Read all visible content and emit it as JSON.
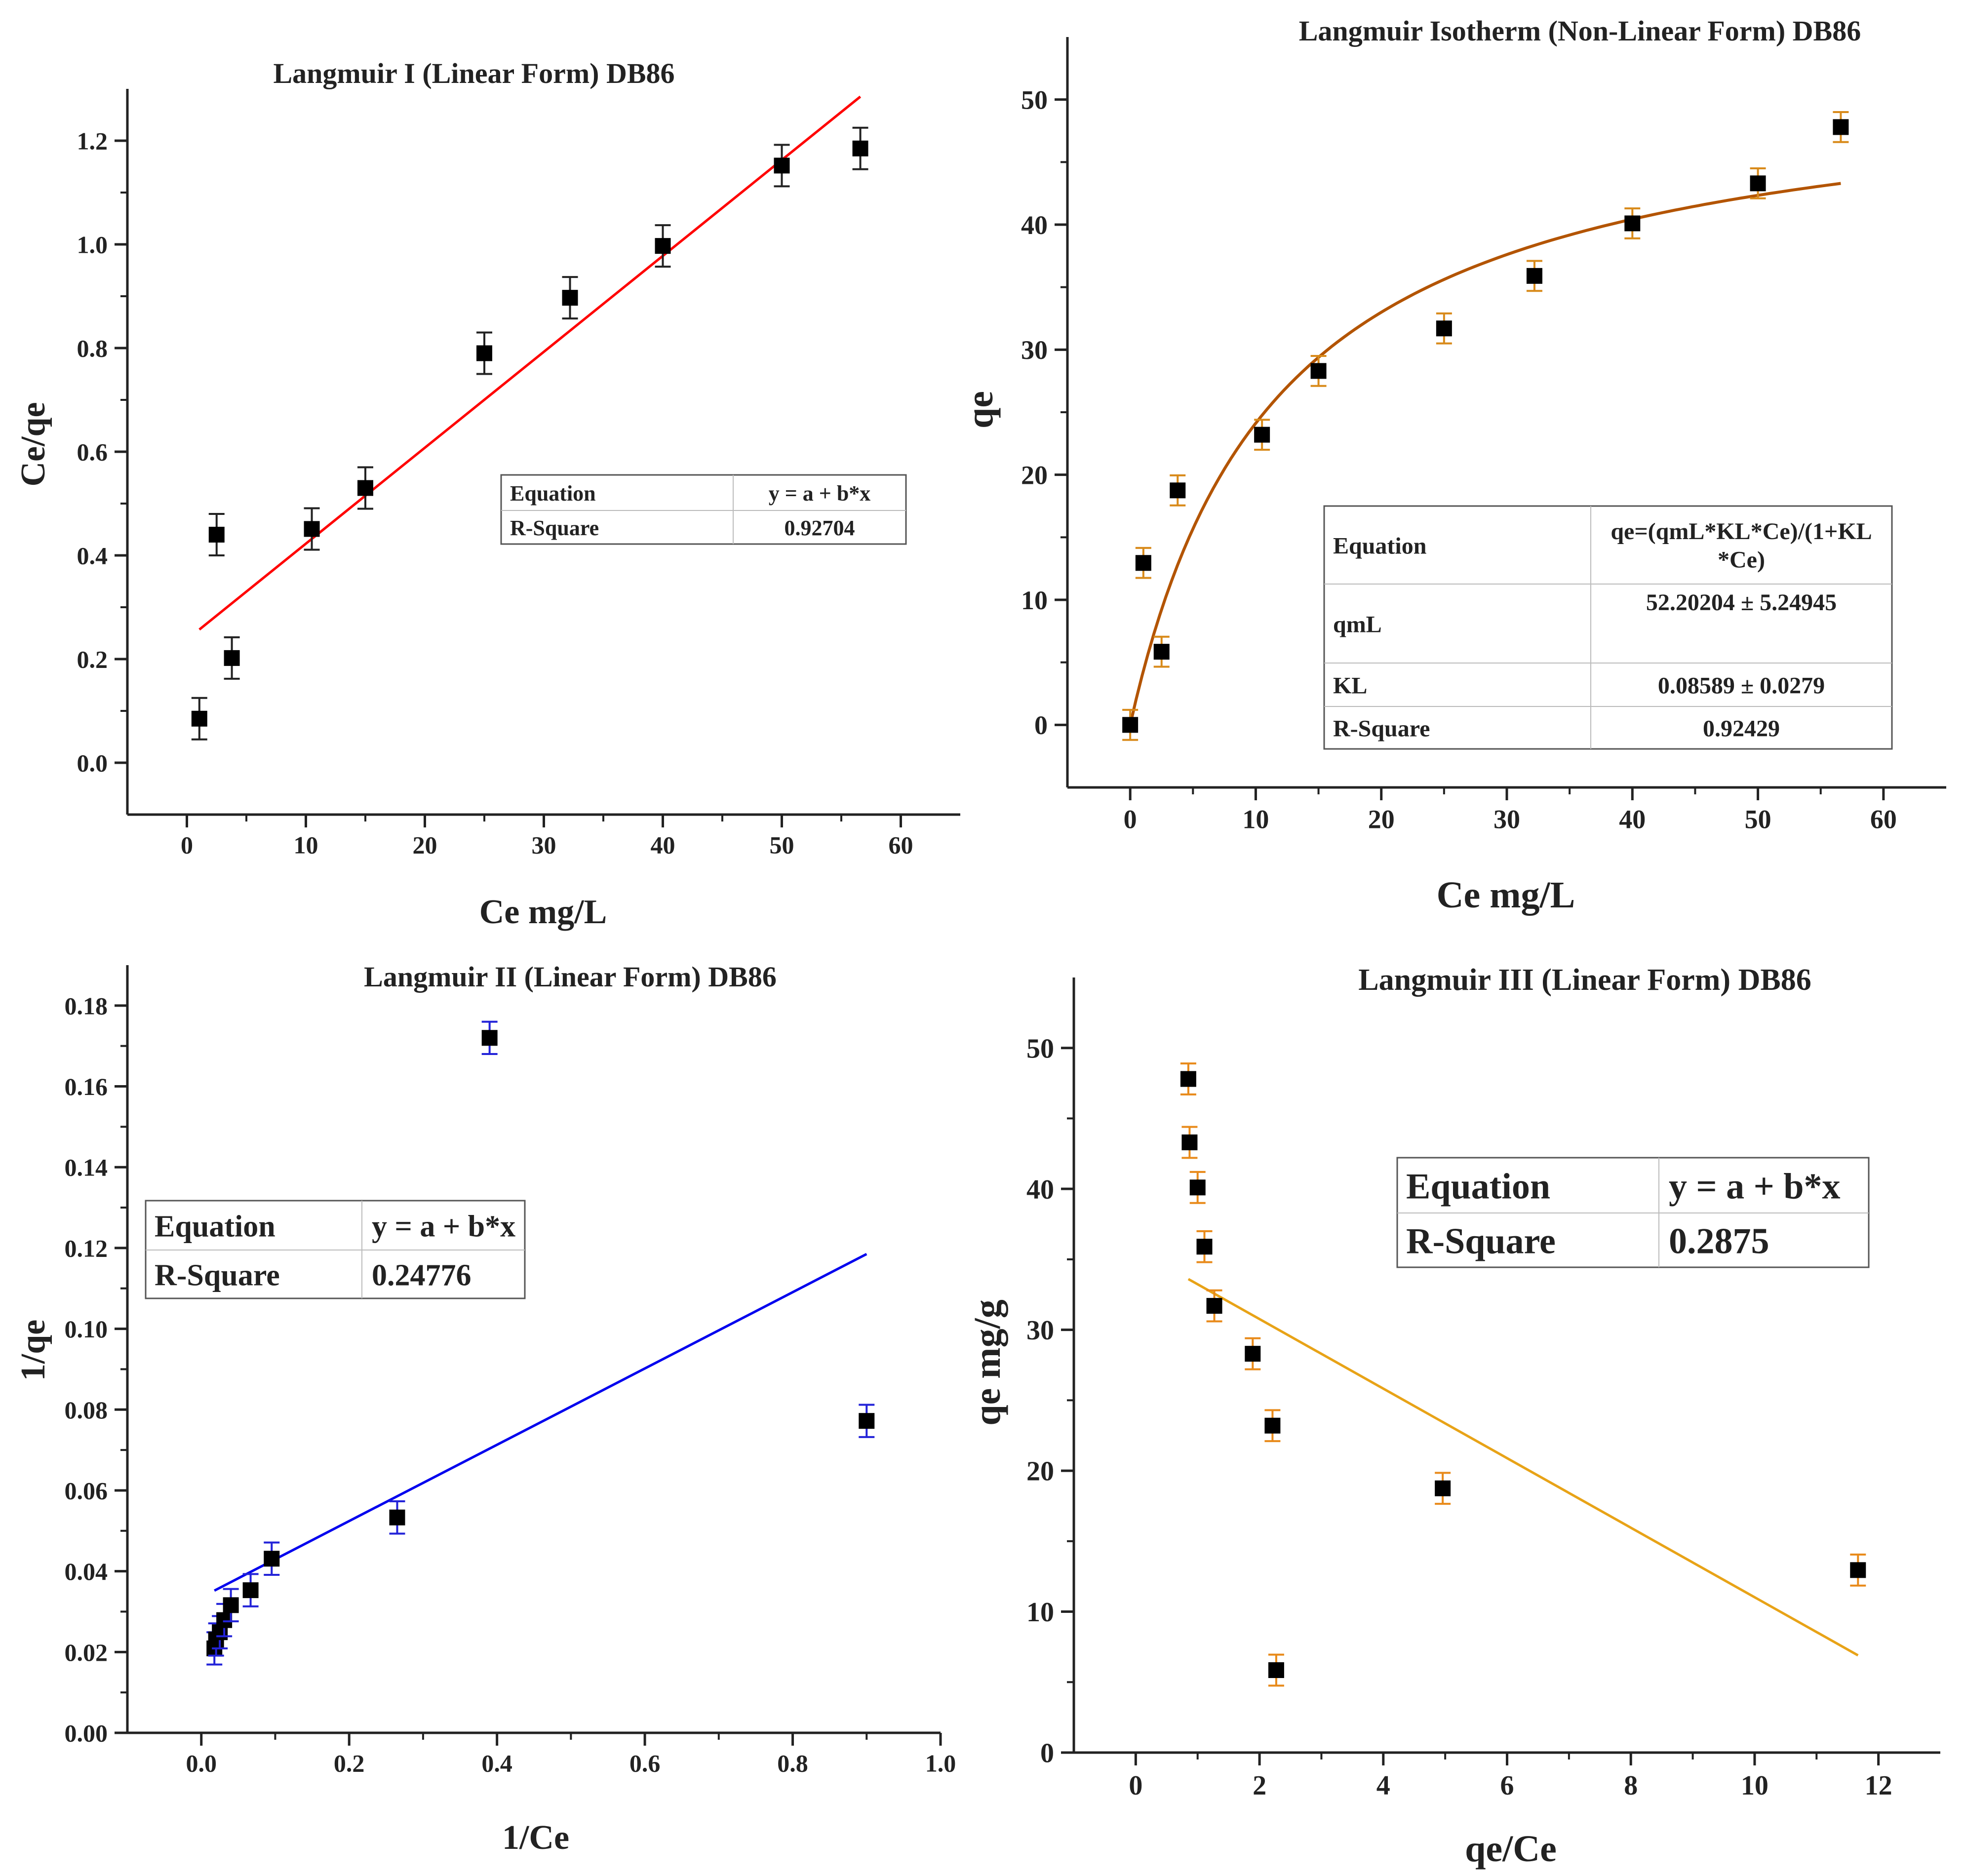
{
  "colors": {
    "axis": "#222222",
    "marker": "#000000",
    "fit_1": "#ff0000",
    "fit_2": "#b35400",
    "fit_3": "#0000ee",
    "fit_4": "#e8a317",
    "err_1": "#222222",
    "err_2": "#d88a1a",
    "err_3": "#2323d8",
    "err_4": "#e88a1a"
  },
  "chart_data": [
    {
      "type": "scatter",
      "title": "Langmuir I (Linear Form) DB86",
      "xlabel": "Ce mg/L",
      "ylabel": "Ce/qe",
      "xlim": [
        -5,
        65
      ],
      "ylim": [
        -0.1,
        1.3
      ],
      "xticks": [
        0,
        10,
        20,
        30,
        40,
        50,
        60
      ],
      "yticks": [
        0.0,
        0.2,
        0.4,
        0.6,
        0.8,
        1.0,
        1.2
      ],
      "xtick_labels": [
        "0",
        "10",
        "20",
        "30",
        "40",
        "50",
        "60"
      ],
      "ytick_labels": [
        "0.0",
        "0.2",
        "0.4",
        "0.6",
        "0.8",
        "1.0",
        "1.2"
      ],
      "points": [
        {
          "x": 1.05,
          "y": 0.085,
          "err": 0.04
        },
        {
          "x": 2.5,
          "y": 0.44,
          "err": 0.04
        },
        {
          "x": 3.78,
          "y": 0.202,
          "err": 0.04
        },
        {
          "x": 10.5,
          "y": 0.451,
          "err": 0.04
        },
        {
          "x": 15.0,
          "y": 0.53,
          "err": 0.04
        },
        {
          "x": 25.0,
          "y": 0.79,
          "err": 0.04
        },
        {
          "x": 32.2,
          "y": 0.897,
          "err": 0.04
        },
        {
          "x": 40.0,
          "y": 0.997,
          "err": 0.04
        },
        {
          "x": 50.0,
          "y": 1.152,
          "err": 0.04
        },
        {
          "x": 56.6,
          "y": 1.185,
          "err": 0.04
        }
      ],
      "fit": {
        "kind": "linear",
        "x_range": [
          1.05,
          56.6
        ],
        "y_start": 0.257,
        "y_end": 1.285
      },
      "legend": {
        "position": "middle-right",
        "rows": [
          {
            "label": "Equation",
            "value": "y = a + b*x"
          },
          {
            "label": "R-Square",
            "value": "0.92704"
          }
        ]
      }
    },
    {
      "type": "scatter",
      "title": "Langmuir Isotherm (Non-Linear Form) DB86",
      "xlabel": "Ce mg/L",
      "ylabel": "qe",
      "xlim": [
        -5,
        65
      ],
      "ylim": [
        -5,
        55
      ],
      "xticks": [
        0,
        10,
        20,
        30,
        40,
        50,
        60
      ],
      "yticks": [
        0,
        10,
        20,
        30,
        40,
        50
      ],
      "xtick_labels": [
        "0",
        "10",
        "20",
        "30",
        "40",
        "50",
        "60"
      ],
      "ytick_labels": [
        "0",
        "10",
        "20",
        "30",
        "40",
        "50"
      ],
      "points": [
        {
          "x": 0.0,
          "y": 0.0,
          "err": 1.2
        },
        {
          "x": 1.05,
          "y": 12.95,
          "err": 1.2
        },
        {
          "x": 2.5,
          "y": 5.85,
          "err": 1.2
        },
        {
          "x": 3.78,
          "y": 18.75,
          "err": 1.2
        },
        {
          "x": 10.5,
          "y": 23.2,
          "err": 1.2
        },
        {
          "x": 15.0,
          "y": 28.3,
          "err": 1.2
        },
        {
          "x": 25.0,
          "y": 31.7,
          "err": 1.2
        },
        {
          "x": 32.2,
          "y": 35.9,
          "err": 1.2
        },
        {
          "x": 40.0,
          "y": 40.1,
          "err": 1.2
        },
        {
          "x": 50.0,
          "y": 43.3,
          "err": 1.2
        },
        {
          "x": 56.6,
          "y": 47.8,
          "err": 1.2
        }
      ],
      "fit": {
        "kind": "langmuir",
        "qm": 52.20204,
        "KL": 0.08589,
        "x_range": [
          0,
          56.6
        ]
      },
      "legend": {
        "position": "lower-right",
        "rows": [
          {
            "label": "Equation",
            "value": "qe=(qmL*KL*Ce)/(1+KL",
            "value2": "*Ce)"
          },
          {
            "label": "qmL",
            "value": "52.20204 ± 5.24945"
          },
          {
            "label": "KL",
            "value": "0.08589 ± 0.0279"
          },
          {
            "label": "R-Square",
            "value": "0.92429"
          }
        ]
      }
    },
    {
      "type": "scatter",
      "title": "Langmuir II (Linear Form) DB86",
      "xlabel": "1/Ce",
      "ylabel": "1/qe",
      "xlim": [
        -0.1,
        1.0
      ],
      "ylim": [
        0.0,
        0.19
      ],
      "xticks": [
        0.0,
        0.2,
        0.4,
        0.6,
        0.8,
        1.0
      ],
      "yticks": [
        0.0,
        0.02,
        0.04,
        0.06,
        0.08,
        0.1,
        0.12,
        0.14,
        0.16,
        0.18
      ],
      "xtick_labels": [
        "0.0",
        "0.2",
        "0.4",
        "0.6",
        "0.8",
        "1.0"
      ],
      "ytick_labels": [
        "0.00",
        "0.02",
        "0.04",
        "0.06",
        "0.08",
        "0.10",
        "0.12",
        "0.14",
        "0.16",
        "0.18"
      ],
      "points": [
        {
          "x": 0.0177,
          "y": 0.0209,
          "err": 0.004
        },
        {
          "x": 0.02,
          "y": 0.0231,
          "err": 0.004
        },
        {
          "x": 0.025,
          "y": 0.0249,
          "err": 0.004
        },
        {
          "x": 0.031,
          "y": 0.0279,
          "err": 0.004
        },
        {
          "x": 0.04,
          "y": 0.0316,
          "err": 0.004
        },
        {
          "x": 0.0667,
          "y": 0.0353,
          "err": 0.004
        },
        {
          "x": 0.0952,
          "y": 0.0431,
          "err": 0.004
        },
        {
          "x": 0.265,
          "y": 0.0533,
          "err": 0.004
        },
        {
          "x": 0.39,
          "y": 0.172,
          "err": 0.004
        },
        {
          "x": 0.9,
          "y": 0.0772,
          "err": 0.004
        }
      ],
      "fit": {
        "kind": "linear",
        "x_range": [
          0.0177,
          0.9
        ],
        "y_start": 0.0352,
        "y_end": 0.1185
      },
      "legend": {
        "position": "upper-left",
        "rows": [
          {
            "label": "Equation",
            "value": "y = a + b*x"
          },
          {
            "label": "R-Square",
            "value": "0.24776"
          }
        ]
      }
    },
    {
      "type": "scatter",
      "title": "Langmuir III (Linear Form) DB86",
      "xlabel": "qe/Ce",
      "ylabel": "qe mg/g",
      "xlim": [
        -1,
        13
      ],
      "ylim": [
        0,
        55
      ],
      "xticks": [
        0,
        2,
        4,
        6,
        8,
        10,
        12
      ],
      "yticks": [
        0,
        10,
        20,
        30,
        40,
        50
      ],
      "xtick_labels": [
        "0",
        "2",
        "4",
        "6",
        "8",
        "10",
        "12"
      ],
      "ytick_labels": [
        "0",
        "10",
        "20",
        "30",
        "40",
        "50"
      ],
      "points": [
        {
          "x": 0.85,
          "y": 47.8,
          "err": 1.1
        },
        {
          "x": 0.87,
          "y": 43.3,
          "err": 1.1
        },
        {
          "x": 1.0,
          "y": 40.1,
          "err": 1.1
        },
        {
          "x": 1.11,
          "y": 35.9,
          "err": 1.1
        },
        {
          "x": 1.27,
          "y": 31.7,
          "err": 1.1
        },
        {
          "x": 1.89,
          "y": 28.3,
          "err": 1.1
        },
        {
          "x": 2.21,
          "y": 23.2,
          "err": 1.1
        },
        {
          "x": 2.27,
          "y": 5.85,
          "err": 1.1
        },
        {
          "x": 4.96,
          "y": 18.75,
          "err": 1.1
        },
        {
          "x": 11.67,
          "y": 12.95,
          "err": 1.1
        }
      ],
      "fit": {
        "kind": "linear",
        "x_range": [
          0.85,
          11.67
        ],
        "y_start": 33.6,
        "y_end": 6.9
      },
      "legend": {
        "position": "upper-right",
        "rows": [
          {
            "label": "Equation",
            "value": "y = a + b*x"
          },
          {
            "label": "R-Square",
            "value": "0.2875"
          }
        ]
      }
    }
  ]
}
